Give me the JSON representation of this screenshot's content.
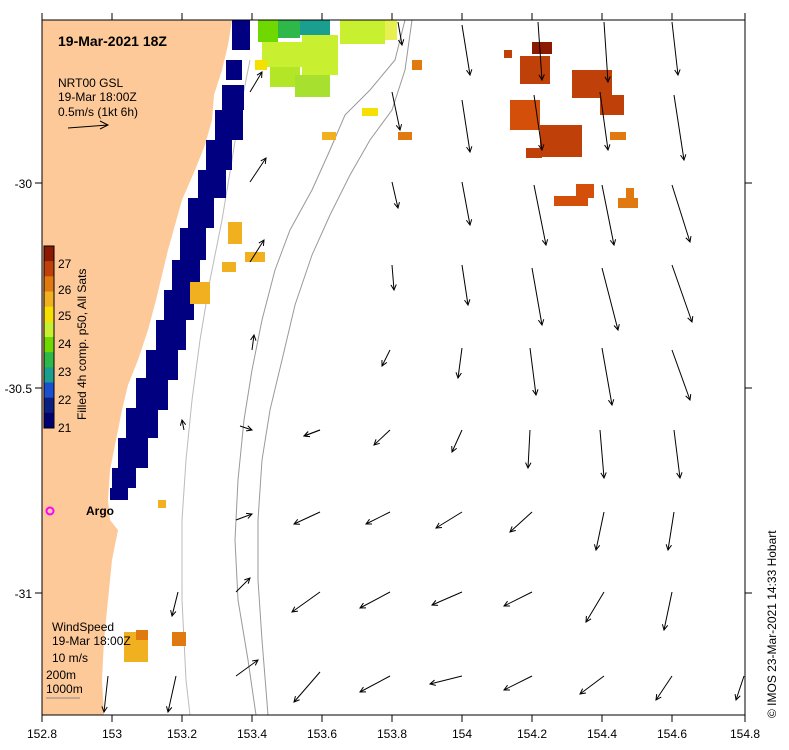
{
  "title": "19-Mar-2021 18Z",
  "current_legend": {
    "line1": "NRT00 GSL",
    "line2": "19-Mar 18:00Z",
    "line3": "0.5m/s (1kt 6h)"
  },
  "colorbar": {
    "label": "Filled 4h comp. p50, All Sats",
    "ticks": [
      "27",
      "26",
      "25",
      "24",
      "23",
      "22",
      "21"
    ],
    "colors": [
      "#8b1a00",
      "#c0400a",
      "#e07a10",
      "#f0b020",
      "#f6e000",
      "#c8ef30",
      "#6ed800",
      "#2fb84a",
      "#1a9e90",
      "#1a4fd0",
      "#0a2080",
      "#000070"
    ]
  },
  "wind_legend": {
    "line1": "WindSpeed",
    "line2": "19-Mar 18:00Z",
    "line3": "10 m/s",
    "line4": "200m",
    "line5": "1000m"
  },
  "argo_label": "Argo",
  "x_ticks": [
    "152.8",
    "153",
    "153.2",
    "153.4",
    "153.6",
    "153.8",
    "154",
    "154.2",
    "154.4",
    "154.6",
    "154.8"
  ],
  "y_ticks": [
    "-30",
    "-30.5",
    "-31"
  ],
  "credit": "© IMOS 23-Mar-2021 14:33 Hobart",
  "colors": {
    "land": "#fdc999",
    "sst_cold": "#000080",
    "sst_warm": "#d4500a",
    "argo": "#ff00ff"
  }
}
